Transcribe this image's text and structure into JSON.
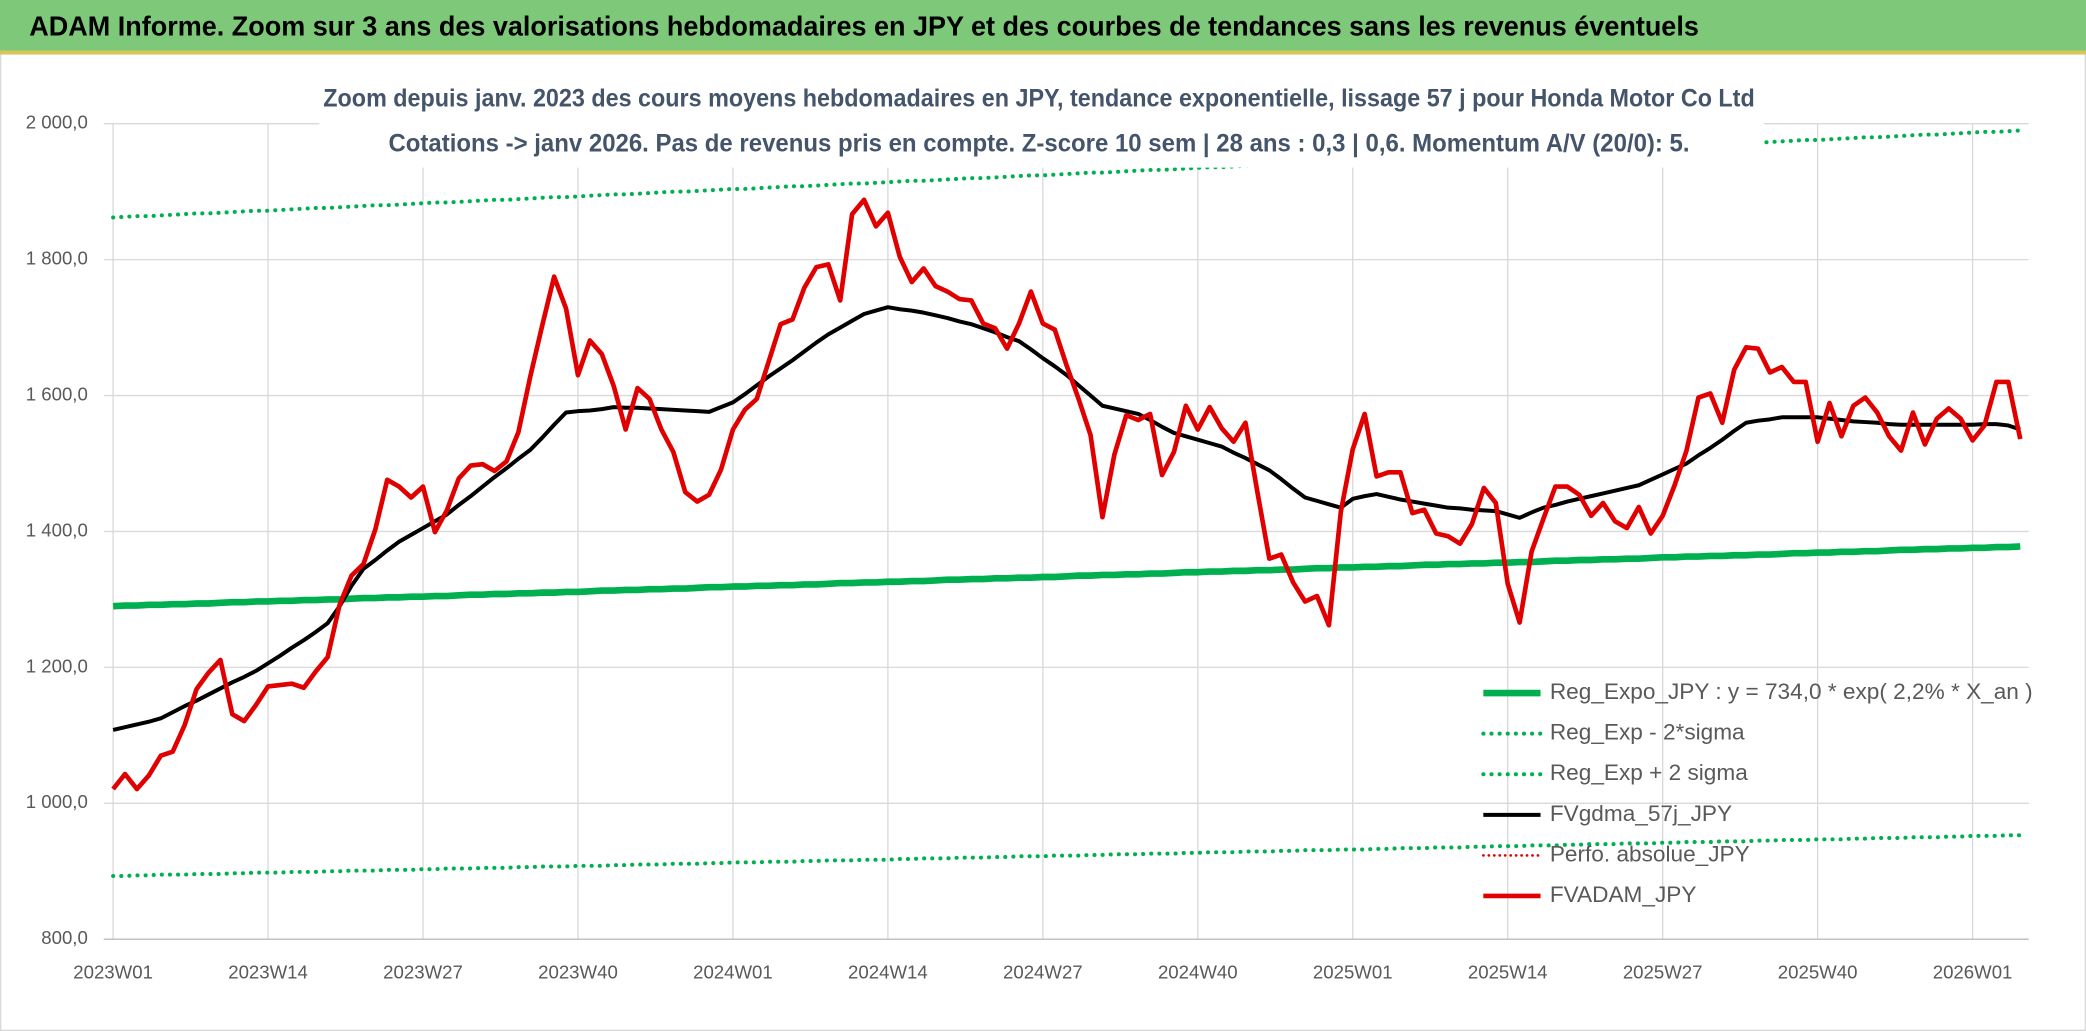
{
  "chart_data": {
    "type": "line",
    "header": "ADAM Informe. Zoom sur 3 ans des valorisations hebdomadaires en JPY et des courbes de tendances sans les revenus éventuels",
    "title": "Zoom depuis janv. 2023 des cours moyens hebdomadaires en JPY, tendance exponentielle, lissage 57 j pour Honda Motor Co Ltd",
    "subtitle": "Cotations -> janv 2026. Pas de revenus pris en compte. Z-score 10 sem | 28 ans : 0,3 | 0,6. Momentum A/V (20/0): 5.",
    "categories": [
      "2023W01",
      null,
      null,
      null,
      null,
      null,
      null,
      null,
      null,
      null,
      null,
      null,
      null,
      "2023W14",
      null,
      null,
      null,
      null,
      null,
      null,
      null,
      null,
      null,
      null,
      null,
      null,
      "2023W27",
      null,
      null,
      null,
      null,
      null,
      null,
      null,
      null,
      null,
      null,
      null,
      null,
      "2023W40",
      null,
      null,
      null,
      null,
      null,
      null,
      null,
      null,
      null,
      null,
      null,
      null,
      "2024W01",
      null,
      null,
      null,
      null,
      null,
      null,
      null,
      null,
      null,
      null,
      null,
      null,
      "2024W14",
      null,
      null,
      null,
      null,
      null,
      null,
      null,
      null,
      null,
      null,
      null,
      null,
      "2024W27",
      null,
      null,
      null,
      null,
      null,
      null,
      null,
      null,
      null,
      null,
      null,
      null,
      "2024W40",
      null,
      null,
      null,
      null,
      null,
      null,
      null,
      null,
      null,
      null,
      null,
      null,
      "2025W01",
      null,
      null,
      null,
      null,
      null,
      null,
      null,
      null,
      null,
      null,
      null,
      null,
      "2025W14",
      null,
      null,
      null,
      null,
      null,
      null,
      null,
      null,
      null,
      null,
      null,
      null,
      "2025W27",
      null,
      null,
      null,
      null,
      null,
      null,
      null,
      null,
      null,
      null,
      null,
      null,
      "2025W40",
      null,
      null,
      null,
      null,
      null,
      null,
      null,
      null,
      null,
      null,
      null,
      null,
      "2026W01",
      null,
      null,
      null,
      null
    ],
    "ylim": [
      800,
      2000
    ],
    "yticks": [
      {
        "value": 800,
        "label": "800,0"
      },
      {
        "value": 1000,
        "label": "1 000,0"
      },
      {
        "value": 1200,
        "label": "1 200,0"
      },
      {
        "value": 1400,
        "label": "1 400,0"
      },
      {
        "value": 1600,
        "label": "1 600,0"
      },
      {
        "value": 1800,
        "label": "1 800,0"
      },
      {
        "value": 2000,
        "label": "2 000,0"
      }
    ],
    "grid": true,
    "legend": "bottom-right",
    "series": [
      {
        "name": "Reg_Expo_JPY : y = 734,0 * exp( 2,2% *  X_an )",
        "color": "#00b050",
        "style": "solid",
        "width": 5,
        "values": [
          1290,
          1291,
          1291,
          1292,
          1292,
          1293,
          1293,
          1294,
          1294,
          1295,
          1296,
          1296,
          1297,
          1297,
          1298,
          1298,
          1299,
          1299,
          1300,
          1300,
          1301,
          1302,
          1302,
          1303,
          1303,
          1304,
          1304,
          1305,
          1305,
          1306,
          1307,
          1307,
          1308,
          1308,
          1309,
          1309,
          1310,
          1310,
          1311,
          1311,
          1312,
          1313,
          1313,
          1314,
          1314,
          1315,
          1315,
          1316,
          1316,
          1317,
          1318,
          1318,
          1319,
          1319,
          1320,
          1320,
          1321,
          1321,
          1322,
          1322,
          1323,
          1324,
          1324,
          1325,
          1325,
          1326,
          1326,
          1327,
          1327,
          1328,
          1329,
          1329,
          1330,
          1330,
          1331,
          1331,
          1332,
          1332,
          1333,
          1333,
          1334,
          1335,
          1335,
          1336,
          1336,
          1337,
          1337,
          1338,
          1338,
          1339,
          1340,
          1340,
          1341,
          1341,
          1342,
          1342,
          1343,
          1343,
          1344,
          1344,
          1345,
          1346,
          1346,
          1347,
          1347,
          1348,
          1348,
          1349,
          1349,
          1350,
          1351,
          1351,
          1352,
          1352,
          1353,
          1353,
          1354,
          1354,
          1355,
          1355,
          1356,
          1357,
          1357,
          1358,
          1358,
          1359,
          1359,
          1360,
          1360,
          1361,
          1362,
          1362,
          1363,
          1363,
          1364,
          1364,
          1365,
          1365,
          1366,
          1366,
          1367,
          1368,
          1368,
          1369,
          1369,
          1370,
          1370,
          1371,
          1371,
          1372,
          1373,
          1373,
          1374,
          1374,
          1375,
          1375,
          1376,
          1376,
          1377,
          1377,
          1378
        ]
      },
      {
        "name": "Reg_Exp - 2*sigma",
        "color": "#00b050",
        "style": "dotted",
        "width": 3,
        "values": [
          893,
          893,
          894,
          894,
          895,
          895,
          895,
          896,
          896,
          896,
          897,
          897,
          898,
          898,
          898,
          899,
          899,
          899,
          900,
          900,
          901,
          901,
          901,
          902,
          902,
          902,
          903,
          903,
          904,
          904,
          904,
          905,
          905,
          905,
          906,
          906,
          907,
          907,
          907,
          908,
          908,
          908,
          909,
          909,
          910,
          910,
          910,
          911,
          911,
          911,
          912,
          912,
          913,
          913,
          913,
          914,
          914,
          914,
          915,
          915,
          916,
          916,
          916,
          917,
          917,
          917,
          918,
          918,
          919,
          919,
          919,
          920,
          920,
          920,
          921,
          921,
          922,
          922,
          922,
          923,
          923,
          923,
          924,
          924,
          925,
          925,
          925,
          926,
          926,
          926,
          927,
          927,
          928,
          928,
          928,
          929,
          929,
          929,
          930,
          930,
          931,
          931,
          931,
          932,
          932,
          932,
          933,
          933,
          934,
          934,
          934,
          935,
          935,
          935,
          936,
          936,
          937,
          937,
          937,
          938,
          938,
          938,
          939,
          939,
          940,
          940,
          940,
          941,
          941,
          941,
          942,
          942,
          943,
          943,
          943,
          944,
          944,
          944,
          945,
          945,
          946,
          946,
          946,
          947,
          947,
          947,
          948,
          948,
          949,
          949,
          949,
          950,
          950,
          950,
          951,
          951,
          952,
          952,
          952,
          953,
          953
        ]
      },
      {
        "name": "Reg_Exp + 2 sigma",
        "color": "#00b050",
        "style": "dotted",
        "width": 3,
        "values": [
          1862,
          1863,
          1864,
          1864,
          1865,
          1866,
          1867,
          1868,
          1868,
          1869,
          1870,
          1871,
          1872,
          1872,
          1873,
          1874,
          1875,
          1876,
          1876,
          1877,
          1878,
          1879,
          1880,
          1880,
          1881,
          1882,
          1883,
          1884,
          1884,
          1885,
          1886,
          1887,
          1888,
          1888,
          1889,
          1890,
          1891,
          1892,
          1892,
          1893,
          1894,
          1895,
          1896,
          1896,
          1897,
          1898,
          1899,
          1900,
          1900,
          1901,
          1902,
          1903,
          1904,
          1904,
          1905,
          1906,
          1907,
          1908,
          1908,
          1909,
          1910,
          1911,
          1912,
          1912,
          1913,
          1914,
          1915,
          1916,
          1916,
          1917,
          1918,
          1919,
          1920,
          1920,
          1921,
          1922,
          1923,
          1924,
          1924,
          1925,
          1926,
          1927,
          1928,
          1928,
          1929,
          1930,
          1931,
          1932,
          1932,
          1933,
          1934,
          1935,
          1936,
          1936,
          1937,
          1938,
          1939,
          1940,
          1940,
          1941,
          1942,
          1943,
          1944,
          1944,
          1945,
          1946,
          1947,
          1948,
          1948,
          1949,
          1950,
          1951,
          1952,
          1952,
          1953,
          1954,
          1955,
          1956,
          1956,
          1957,
          1958,
          1959,
          1960,
          1960,
          1961,
          1962,
          1963,
          1964,
          1964,
          1965,
          1966,
          1967,
          1968,
          1968,
          1969,
          1970,
          1971,
          1972,
          1972,
          1973,
          1974,
          1975,
          1976,
          1976,
          1977,
          1978,
          1979,
          1980,
          1980,
          1981,
          1982,
          1983,
          1984,
          1984,
          1985,
          1986,
          1987,
          1988,
          1988,
          1989,
          1990
        ]
      },
      {
        "name": "FVgdma_57j_JPY",
        "color": "#000000",
        "style": "solid",
        "width": 3,
        "values": [
          1108,
          1112,
          1116,
          1120,
          1125,
          1134,
          1143,
          1151,
          1160,
          1169,
          1178,
          1186,
          1195,
          1206,
          1217,
          1229,
          1240,
          1252,
          1265,
          1290,
          1320,
          1345,
          1358,
          1372,
          1385,
          1395,
          1405,
          1415,
          1425,
          1439,
          1452,
          1466,
          1480,
          1493,
          1507,
          1520,
          1538,
          1557,
          1575,
          1577,
          1578,
          1580,
          1583,
          1582,
          1582,
          1581,
          1580,
          1579,
          1578,
          1577,
          1576,
          1583,
          1590,
          1602,
          1615,
          1628,
          1640,
          1652,
          1665,
          1678,
          1690,
          1700,
          1710,
          1720,
          1725,
          1730,
          1727,
          1725,
          1722,
          1718,
          1714,
          1709,
          1705,
          1699,
          1693,
          1686,
          1680,
          1668,
          1655,
          1643,
          1630,
          1615,
          1600,
          1585,
          1581,
          1577,
          1573,
          1564,
          1554,
          1545,
          1540,
          1535,
          1530,
          1525,
          1516,
          1508,
          1499,
          1490,
          1477,
          1463,
          1450,
          1445,
          1440,
          1435,
          1448,
          1452,
          1455,
          1451,
          1447,
          1444,
          1441,
          1438,
          1435,
          1434,
          1432,
          1431,
          1430,
          1425,
          1420,
          1428,
          1435,
          1439,
          1444,
          1448,
          1452,
          1456,
          1460,
          1464,
          1468,
          1476,
          1484,
          1492,
          1500,
          1512,
          1523,
          1535,
          1548,
          1560,
          1563,
          1565,
          1568,
          1568,
          1568,
          1568,
          1566,
          1564,
          1562,
          1561,
          1560,
          1558,
          1557,
          1557,
          1557,
          1557,
          1557,
          1557,
          1557,
          1558,
          1558,
          1556,
          1550
        ]
      },
      {
        "name": "Perfo. absolue_JPY",
        "color": "#e00000",
        "style": "dotted",
        "width": 2,
        "values": [
          null,
          null,
          null,
          null,
          null,
          null,
          null,
          null,
          null,
          null,
          null,
          null,
          null,
          null,
          null,
          null,
          null,
          null,
          null,
          null,
          null,
          null,
          null,
          null,
          null,
          null,
          null,
          null,
          null,
          null,
          null,
          null,
          null,
          null,
          null,
          null,
          null,
          null,
          null,
          null,
          null,
          null,
          null,
          null,
          null,
          null,
          null,
          null,
          null,
          null,
          null,
          null,
          null,
          null,
          null,
          null,
          null,
          null,
          null,
          null,
          null,
          null,
          null,
          null,
          null,
          null,
          null,
          null,
          null,
          null,
          null,
          null,
          null,
          null,
          null,
          null,
          null,
          null,
          null,
          null,
          null,
          null,
          null,
          null,
          null,
          null,
          null,
          null,
          null,
          null,
          null,
          null,
          null,
          null,
          null,
          null,
          null,
          null,
          null,
          null,
          null,
          null,
          null,
          null,
          null,
          null,
          null,
          null,
          null,
          null,
          null,
          null,
          null,
          null,
          null,
          null,
          null,
          null,
          null,
          null,
          null,
          null,
          null,
          null,
          null,
          null,
          null,
          null,
          null,
          null,
          null,
          null,
          null,
          null,
          null,
          null,
          null,
          null,
          null,
          null,
          null,
          null,
          null,
          null,
          null,
          null,
          null,
          null,
          null,
          null,
          null,
          null,
          null,
          null,
          null,
          null,
          null,
          null,
          null,
          null,
          null
        ]
      },
      {
        "name": "FVADAM_JPY",
        "color": "#e00000",
        "style": "solid",
        "width": 3.5,
        "values": [
          1021,
          1043,
          1021,
          1041,
          1070,
          1076,
          1115,
          1168,
          1192,
          1211,
          1131,
          1121,
          1145,
          1172,
          1174,
          1176,
          1170,
          1194,
          1215,
          1292,
          1335,
          1352,
          1403,
          1476,
          1466,
          1450,
          1466,
          1399,
          1431,
          1478,
          1497,
          1499,
          1489,
          1503,
          1546,
          1628,
          1703,
          1775,
          1728,
          1630,
          1681,
          1661,
          1614,
          1550,
          1611,
          1595,
          1550,
          1517,
          1458,
          1444,
          1454,
          1491,
          1550,
          1579,
          1595,
          1650,
          1705,
          1712,
          1759,
          1789,
          1793,
          1740,
          1867,
          1888,
          1849,
          1869,
          1804,
          1767,
          1787,
          1761,
          1753,
          1742,
          1740,
          1706,
          1699,
          1669,
          1706,
          1753,
          1706,
          1697,
          1644,
          1595,
          1542,
          1421,
          1513,
          1571,
          1564,
          1573,
          1483,
          1517,
          1585,
          1550,
          1583,
          1552,
          1532,
          1560,
          1458,
          1360,
          1366,
          1325,
          1297,
          1305,
          1262,
          1429,
          1521,
          1573,
          1481,
          1487,
          1487,
          1427,
          1432,
          1397,
          1393,
          1382,
          1411,
          1464,
          1442,
          1323,
          1266,
          1370,
          1419,
          1466,
          1466,
          1454,
          1423,
          1442,
          1415,
          1405,
          1436,
          1397,
          1423,
          1468,
          1519,
          1597,
          1603,
          1560,
          1638,
          1671,
          1669,
          1634,
          1642,
          1620,
          1620,
          1532,
          1589,
          1540,
          1585,
          1597,
          1575,
          1540,
          1519,
          1575,
          1528,
          1566,
          1581,
          1566,
          1534,
          1556,
          1620,
          1620,
          1536
        ]
      }
    ]
  }
}
